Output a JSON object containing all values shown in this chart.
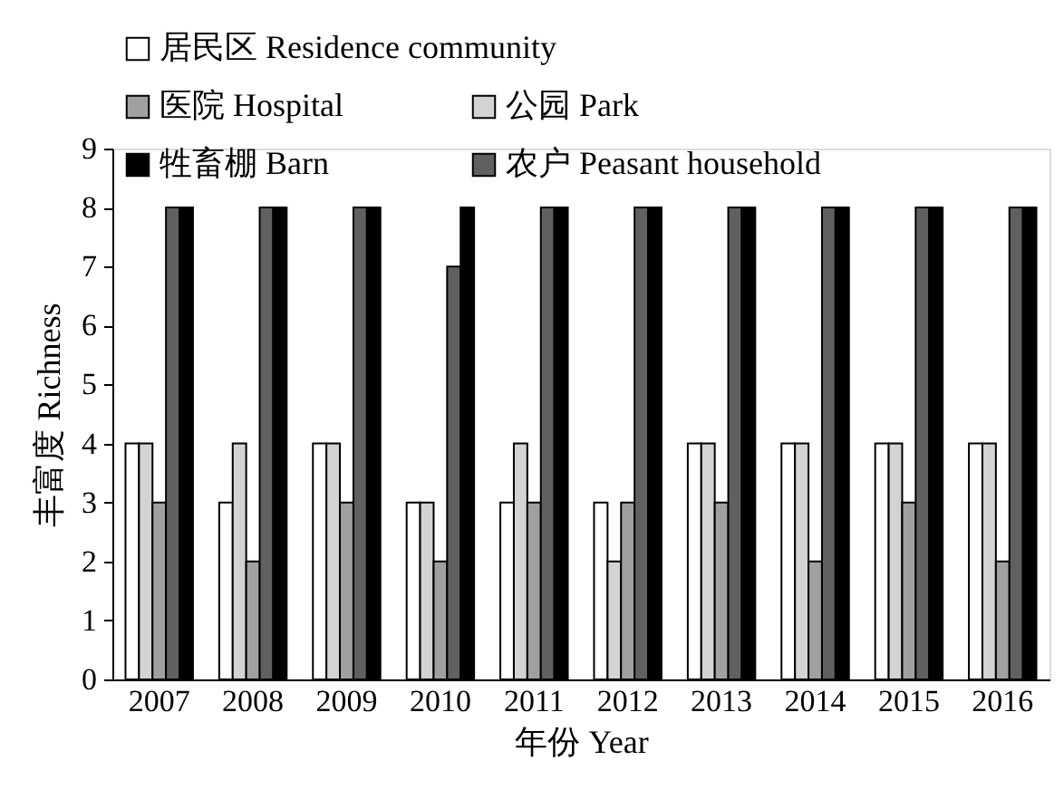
{
  "chart_data": {
    "type": "bar",
    "xlabel": "年份 Year",
    "ylabel": "丰富度 Richness",
    "categories": [
      "2007",
      "2008",
      "2009",
      "2010",
      "2011",
      "2012",
      "2013",
      "2014",
      "2015",
      "2016"
    ],
    "series": [
      {
        "name": "居民区 Residence community",
        "color": "#ffffff",
        "values": [
          4,
          3,
          4,
          3,
          3,
          3,
          4,
          4,
          4,
          4
        ]
      },
      {
        "name": "公园 Park",
        "color": "#d3d3d3",
        "values": [
          4,
          4,
          4,
          3,
          4,
          2,
          4,
          4,
          4,
          4
        ]
      },
      {
        "name": "医院 Hospital",
        "color": "#a0a0a0",
        "values": [
          3,
          2,
          3,
          2,
          3,
          3,
          3,
          2,
          3,
          2
        ]
      },
      {
        "name": "农户 Peasant household",
        "color": "#606060",
        "values": [
          8,
          8,
          8,
          7,
          8,
          8,
          8,
          8,
          8,
          8
        ]
      },
      {
        "name": "牲畜棚 Barn",
        "color": "#000000",
        "values": [
          8,
          8,
          8,
          8,
          8,
          8,
          8,
          8,
          8,
          8
        ]
      }
    ],
    "ylim": [
      0,
      9
    ],
    "yticks": [
      0,
      1,
      2,
      3,
      4,
      5,
      6,
      7,
      8,
      9
    ],
    "grid": false,
    "legend": "top left"
  }
}
